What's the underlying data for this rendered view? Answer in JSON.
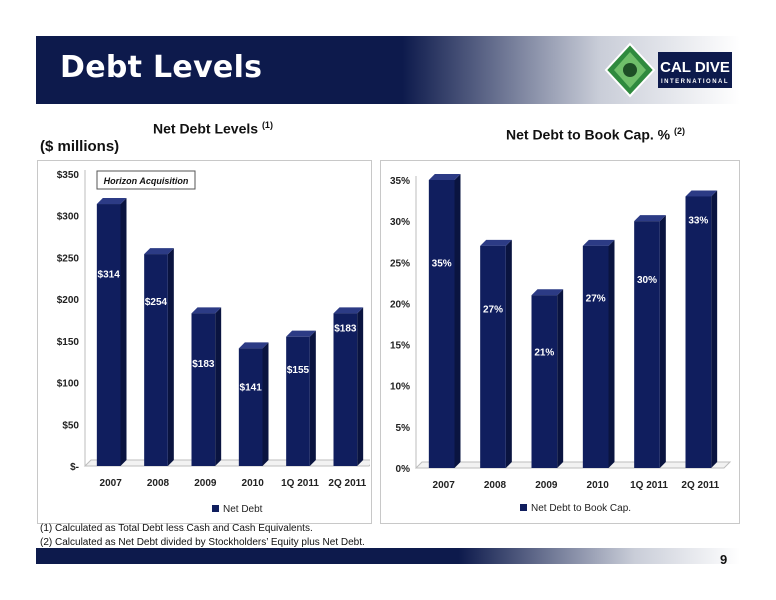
{
  "header": {
    "title": "Debt Levels",
    "logo_text_top": "CAL DIVE",
    "logo_text_bottom": "INTERNATIONAL"
  },
  "colors": {
    "bar": "#101e5e",
    "bar_top": "#2c3b85",
    "bar_side": "#0a1440",
    "header": "#0d1a4c"
  },
  "left_chart": {
    "title": "Net Debt Levels",
    "title_note": "(1)",
    "units": "($ millions)"
  },
  "right_chart": {
    "title": "Net Debt to Book Cap. %",
    "title_note": "(2)"
  },
  "chart_data": [
    {
      "type": "bar",
      "categories": [
        "2007",
        "2008",
        "2009",
        "2010",
        "1Q 2011",
        "2Q 2011"
      ],
      "values": [
        314,
        254,
        183,
        141,
        155,
        183
      ],
      "data_labels": [
        "$314",
        "$254",
        "$183",
        "$141",
        "$155",
        "$183"
      ],
      "yticks": [
        0,
        50,
        100,
        150,
        200,
        250,
        300,
        350
      ],
      "ytick_labels": [
        "$-",
        "$50",
        "$100",
        "$150",
        "$200",
        "$250",
        "$300",
        "$350"
      ],
      "ylim": [
        0,
        350
      ],
      "legend": "Net Debt",
      "legend_position": "bottom",
      "annotation": "Horizon Acquisition"
    },
    {
      "type": "bar",
      "categories": [
        "2007",
        "2008",
        "2009",
        "2010",
        "1Q 2011",
        "2Q 2011"
      ],
      "values": [
        35,
        27,
        21,
        27,
        30,
        33
      ],
      "data_labels": [
        "35%",
        "27%",
        "21%",
        "27%",
        "30%",
        "33%"
      ],
      "yticks": [
        0,
        5,
        10,
        15,
        20,
        25,
        30,
        35
      ],
      "ytick_labels": [
        "0%",
        "5%",
        "10%",
        "15%",
        "20%",
        "25%",
        "30%",
        "35%"
      ],
      "ylim": [
        0,
        35
      ],
      "legend": "Net Debt to Book Cap.",
      "legend_position": "bottom"
    }
  ],
  "footnotes": [
    "(1)   Calculated as Total Debt less Cash and Cash Equivalents.",
    "(2)   Calculated as Net Debt divided by Stockholders’ Equity plus Net Debt."
  ],
  "page_number": "9"
}
